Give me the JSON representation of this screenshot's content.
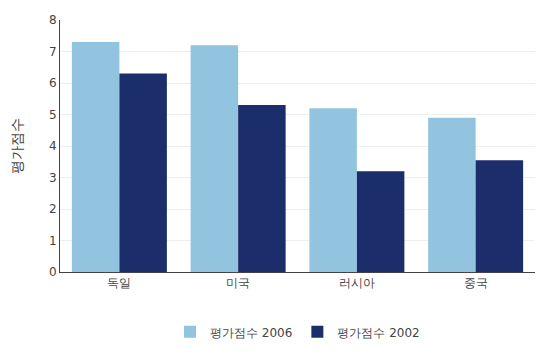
{
  "chart_data": {
    "type": "bar",
    "categories": [
      "독일",
      "미국",
      "러시아",
      "중국"
    ],
    "series": [
      {
        "name": "평가점수 2006",
        "color": "#92C4E0",
        "values": [
          7.3,
          7.2,
          5.2,
          4.9
        ]
      },
      {
        "name": "평가점수 2002",
        "color": "#1C2D6B",
        "values": [
          6.3,
          5.3,
          3.2,
          3.55
        ]
      }
    ],
    "ylabel": "평가점수",
    "ylim": [
      0,
      8
    ],
    "yticks": [
      0,
      1,
      2,
      3,
      4,
      5,
      6,
      7,
      8
    ],
    "grid": true,
    "legend": "bottom"
  }
}
